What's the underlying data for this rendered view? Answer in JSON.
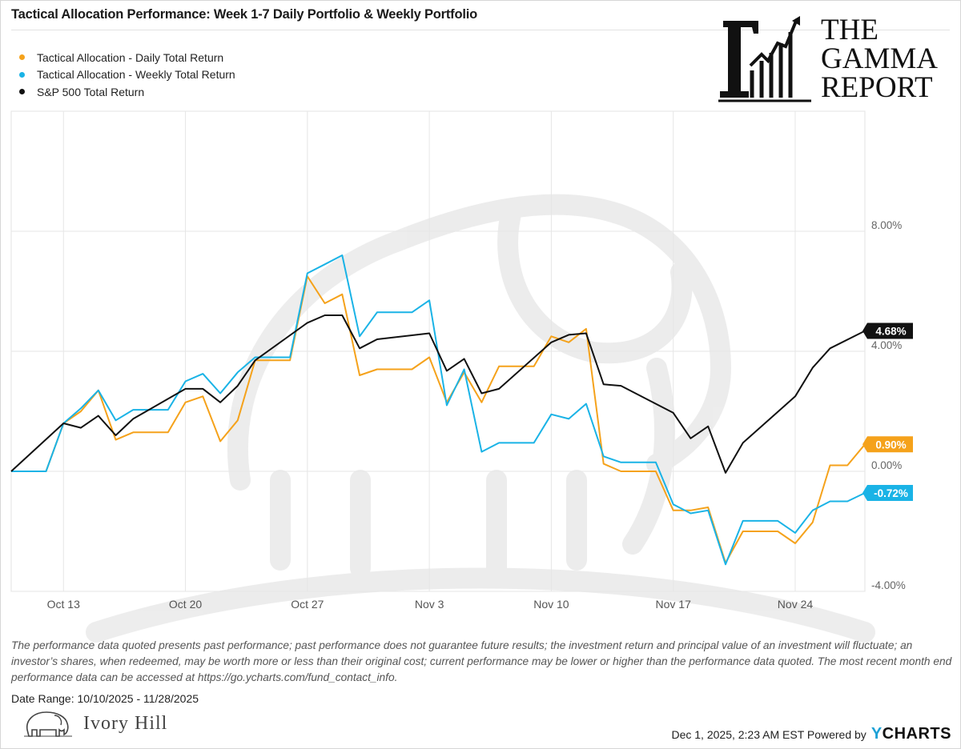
{
  "header": {
    "title": "Tactical Allocation Performance: Week 1-7 Daily Portfolio & Weekly Portfolio"
  },
  "logo": {
    "lines": [
      "THE",
      "GAMMA",
      "REPORT"
    ]
  },
  "chart_data": {
    "type": "line",
    "title": "Tactical Allocation Performance: Week 1-7 Daily Portfolio & Weekly Portfolio",
    "x_unit": "date",
    "x_range": [
      "2025-10-10",
      "2025-11-28"
    ],
    "ylim": [
      -4,
      12
    ],
    "y_ticks": [
      {
        "value": 8,
        "label": "8.00%"
      },
      {
        "value": 4,
        "label": "4.00%"
      },
      {
        "value": 0,
        "label": "0.00%"
      },
      {
        "value": -4,
        "label": "-4.00%"
      }
    ],
    "x_ticks": [
      {
        "date": "2025-10-13",
        "label": "Oct 13"
      },
      {
        "date": "2025-10-20",
        "label": "Oct 20"
      },
      {
        "date": "2025-10-27",
        "label": "Oct 27"
      },
      {
        "date": "2025-11-03",
        "label": "Nov 3"
      },
      {
        "date": "2025-11-10",
        "label": "Nov 10"
      },
      {
        "date": "2025-11-17",
        "label": "Nov 17"
      },
      {
        "date": "2025-11-24",
        "label": "Nov 24"
      }
    ],
    "grid": true,
    "legend_position": "top-left",
    "series": [
      {
        "name": "Tactical Allocation - Daily Total Return",
        "color": "#f5a21b",
        "end_label": "0.90%",
        "points": [
          [
            "2025-10-10",
            0
          ],
          [
            "2025-10-11",
            0
          ],
          [
            "2025-10-12",
            0
          ],
          [
            "2025-10-13",
            1.6
          ],
          [
            "2025-10-14",
            2.0
          ],
          [
            "2025-10-15",
            2.7
          ],
          [
            "2025-10-16",
            1.05
          ],
          [
            "2025-10-17",
            1.3
          ],
          [
            "2025-10-18",
            1.3
          ],
          [
            "2025-10-19",
            1.3
          ],
          [
            "2025-10-20",
            2.3
          ],
          [
            "2025-10-21",
            2.5
          ],
          [
            "2025-10-22",
            1.0
          ],
          [
            "2025-10-23",
            1.7
          ],
          [
            "2025-10-24",
            3.7
          ],
          [
            "2025-10-25",
            3.7
          ],
          [
            "2025-10-26",
            3.7
          ],
          [
            "2025-10-27",
            6.5
          ],
          [
            "2025-10-28",
            5.6
          ],
          [
            "2025-10-29",
            5.9
          ],
          [
            "2025-10-30",
            3.2
          ],
          [
            "2025-10-31",
            3.4
          ],
          [
            "2025-11-01",
            3.4
          ],
          [
            "2025-11-02",
            3.4
          ],
          [
            "2025-11-03",
            3.8
          ],
          [
            "2025-11-04",
            2.3
          ],
          [
            "2025-11-05",
            3.3
          ],
          [
            "2025-11-06",
            2.3
          ],
          [
            "2025-11-07",
            3.5
          ],
          [
            "2025-11-08",
            3.5
          ],
          [
            "2025-11-09",
            3.5
          ],
          [
            "2025-11-10",
            4.5
          ],
          [
            "2025-11-11",
            4.3
          ],
          [
            "2025-11-12",
            4.75
          ],
          [
            "2025-11-13",
            0.25
          ],
          [
            "2025-11-14",
            0.0
          ],
          [
            "2025-11-15",
            0.0
          ],
          [
            "2025-11-16",
            0.0
          ],
          [
            "2025-11-17",
            -1.3
          ],
          [
            "2025-11-18",
            -1.3
          ],
          [
            "2025-11-19",
            -1.2
          ],
          [
            "2025-11-20",
            -3.05
          ],
          [
            "2025-11-21",
            -2.0
          ],
          [
            "2025-11-22",
            -2.0
          ],
          [
            "2025-11-23",
            -2.0
          ],
          [
            "2025-11-24",
            -2.4
          ],
          [
            "2025-11-25",
            -1.7
          ],
          [
            "2025-11-26",
            0.2
          ],
          [
            "2025-11-27",
            0.2
          ],
          [
            "2025-11-28",
            0.9
          ]
        ]
      },
      {
        "name": "Tactical Allocation - Weekly Total Return",
        "color": "#1ab3e6",
        "end_label": "-0.72%",
        "points": [
          [
            "2025-10-10",
            0
          ],
          [
            "2025-10-11",
            0
          ],
          [
            "2025-10-12",
            0
          ],
          [
            "2025-10-13",
            1.6
          ],
          [
            "2025-10-14",
            2.1
          ],
          [
            "2025-10-15",
            2.7
          ],
          [
            "2025-10-16",
            1.7
          ],
          [
            "2025-10-17",
            2.05
          ],
          [
            "2025-10-18",
            2.05
          ],
          [
            "2025-10-19",
            2.05
          ],
          [
            "2025-10-20",
            3.0
          ],
          [
            "2025-10-21",
            3.25
          ],
          [
            "2025-10-22",
            2.6
          ],
          [
            "2025-10-23",
            3.3
          ],
          [
            "2025-10-24",
            3.8
          ],
          [
            "2025-10-25",
            3.8
          ],
          [
            "2025-10-26",
            3.8
          ],
          [
            "2025-10-27",
            6.6
          ],
          [
            "2025-10-28",
            6.9
          ],
          [
            "2025-10-29",
            7.2
          ],
          [
            "2025-10-30",
            4.5
          ],
          [
            "2025-10-31",
            5.3
          ],
          [
            "2025-11-01",
            5.3
          ],
          [
            "2025-11-02",
            5.3
          ],
          [
            "2025-11-03",
            5.7
          ],
          [
            "2025-11-04",
            2.2
          ],
          [
            "2025-11-05",
            3.4
          ],
          [
            "2025-11-06",
            0.65
          ],
          [
            "2025-11-07",
            0.95
          ],
          [
            "2025-11-08",
            0.95
          ],
          [
            "2025-11-09",
            0.95
          ],
          [
            "2025-11-10",
            1.9
          ],
          [
            "2025-11-11",
            1.75
          ],
          [
            "2025-11-12",
            2.25
          ],
          [
            "2025-11-13",
            0.5
          ],
          [
            "2025-11-14",
            0.3
          ],
          [
            "2025-11-15",
            0.3
          ],
          [
            "2025-11-16",
            0.3
          ],
          [
            "2025-11-17",
            -1.1
          ],
          [
            "2025-11-18",
            -1.4
          ],
          [
            "2025-11-19",
            -1.3
          ],
          [
            "2025-11-20",
            -3.1
          ],
          [
            "2025-11-21",
            -1.65
          ],
          [
            "2025-11-22",
            -1.65
          ],
          [
            "2025-11-23",
            -1.65
          ],
          [
            "2025-11-24",
            -2.05
          ],
          [
            "2025-11-25",
            -1.3
          ],
          [
            "2025-11-26",
            -1.0
          ],
          [
            "2025-11-27",
            -1.0
          ],
          [
            "2025-11-28",
            -0.72
          ]
        ]
      },
      {
        "name": "S&P 500 Total Return",
        "color": "#111111",
        "end_label": "4.68%",
        "points": [
          [
            "2025-10-10",
            0
          ],
          [
            "2025-10-13",
            1.6
          ],
          [
            "2025-10-14",
            1.45
          ],
          [
            "2025-10-15",
            1.85
          ],
          [
            "2025-10-16",
            1.2
          ],
          [
            "2025-10-17",
            1.75
          ],
          [
            "2025-10-20",
            2.75
          ],
          [
            "2025-10-21",
            2.75
          ],
          [
            "2025-10-22",
            2.3
          ],
          [
            "2025-10-23",
            2.85
          ],
          [
            "2025-10-24",
            3.7
          ],
          [
            "2025-10-27",
            4.95
          ],
          [
            "2025-10-28",
            5.2
          ],
          [
            "2025-10-29",
            5.2
          ],
          [
            "2025-10-30",
            4.1
          ],
          [
            "2025-10-31",
            4.4
          ],
          [
            "2025-11-03",
            4.6
          ],
          [
            "2025-11-04",
            3.35
          ],
          [
            "2025-11-05",
            3.75
          ],
          [
            "2025-11-06",
            2.6
          ],
          [
            "2025-11-07",
            2.75
          ],
          [
            "2025-11-10",
            4.3
          ],
          [
            "2025-11-11",
            4.55
          ],
          [
            "2025-11-12",
            4.6
          ],
          [
            "2025-11-13",
            2.9
          ],
          [
            "2025-11-14",
            2.85
          ],
          [
            "2025-11-17",
            1.95
          ],
          [
            "2025-11-18",
            1.1
          ],
          [
            "2025-11-19",
            1.5
          ],
          [
            "2025-11-20",
            -0.05
          ],
          [
            "2025-11-21",
            0.95
          ],
          [
            "2025-11-24",
            2.5
          ],
          [
            "2025-11-25",
            3.45
          ],
          [
            "2025-11-26",
            4.1
          ],
          [
            "2025-11-28",
            4.68
          ]
        ]
      }
    ]
  },
  "footer": {
    "disclaimer": "The performance data quoted presents past performance; past performance does not guarantee future results; the investment return and principal value of an investment will fluctuate; an investor’s shares, when redeemed, may be worth more or less than their original cost; current performance may be lower or higher than the performance data quoted. The most recent month end performance data can be accessed at https://go.ycharts.com/fund_contact_info.",
    "date_range": "Date Range: 10/10/2025 - 11/28/2025",
    "firm_name": "Ivory Hill",
    "timestamp": "Dec 1, 2025, 2:23 AM EST Powered by",
    "brand_y": "Y",
    "brand_rest": "CHARTS"
  }
}
